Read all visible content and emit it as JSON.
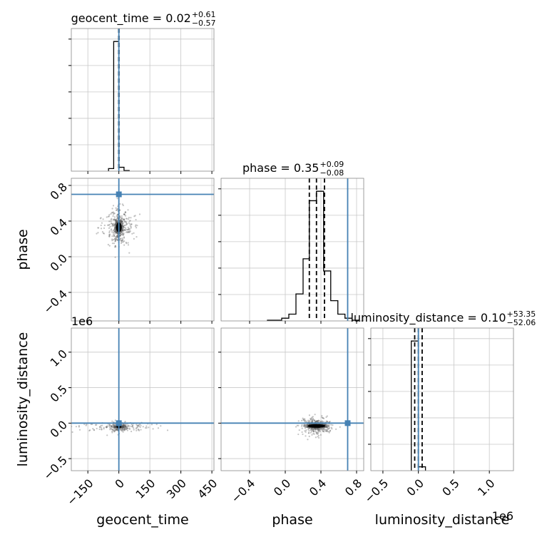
{
  "chart_data": {
    "type": "corner",
    "parameters": [
      "geocent_time",
      "phase",
      "luminosity_distance"
    ],
    "offset_text": "1e6",
    "truth": {
      "geocent_time": 0,
      "phase": 0.7,
      "luminosity_distance": 0
    },
    "truth_color": "#4682b4",
    "titles": [
      {
        "name": "geocent_time",
        "value": "0.02",
        "plus": "+0.61",
        "minus": "−0.57"
      },
      {
        "name": "phase",
        "value": "0.35",
        "plus": "+0.09",
        "minus": "−0.08"
      },
      {
        "name": "luminosity_distance",
        "value": "0.10",
        "plus": "+53.35",
        "minus": "−52.06"
      }
    ],
    "axes": {
      "geocent_time": {
        "range": [
          -230,
          460
        ],
        "ticks": [
          -150,
          0,
          150,
          300,
          450
        ],
        "tick_labels": [
          "−150",
          "0",
          "150",
          "300",
          "450"
        ],
        "label": "geocent_time",
        "quantiles": [
          -0.55,
          0.02,
          0.63
        ]
      },
      "phase": {
        "range": [
          -0.72,
          0.88
        ],
        "ticks": [
          -0.4,
          0.0,
          0.4,
          0.8
        ],
        "tick_labels": [
          "−0.4",
          "0.0",
          "0.4",
          "0.8"
        ],
        "label": "phase",
        "quantiles": [
          0.27,
          0.35,
          0.44
        ]
      },
      "luminosity_distance": {
        "range": [
          -670000,
          1340000
        ],
        "ticks": [
          -500000,
          0,
          500000,
          1000000
        ],
        "tick_labels": [
          "−0.5",
          "0.0",
          "0.5",
          "1.0"
        ],
        "label": "luminosity_distance",
        "quantiles": [
          -52000,
          100,
          53000
        ]
      }
    },
    "histograms": {
      "geocent_time": {
        "bins": [
          [
            -50,
            -25
          ],
          [
            -25,
            0
          ],
          [
            0,
            25
          ],
          [
            25,
            50
          ]
        ],
        "values": [
          0.02,
          1.0,
          0.03,
          0.005
        ]
      },
      "phase": {
        "bins": [
          [
            -0.2,
            -0.12
          ],
          [
            -0.12,
            -0.04
          ],
          [
            -0.04,
            0.04
          ],
          [
            0.04,
            0.12
          ],
          [
            0.12,
            0.2
          ],
          [
            0.2,
            0.27
          ],
          [
            0.27,
            0.35
          ],
          [
            0.35,
            0.43
          ],
          [
            0.43,
            0.51
          ],
          [
            0.51,
            0.59
          ],
          [
            0.59,
            0.67
          ],
          [
            0.67,
            0.75
          ],
          [
            0.75,
            0.83
          ]
        ],
        "values": [
          0.005,
          0.005,
          0.02,
          0.05,
          0.2,
          0.46,
          0.89,
          0.96,
          0.37,
          0.15,
          0.05,
          0.02,
          0.005
        ]
      },
      "luminosity_distance": {
        "bins": [
          [
            -100000,
            0
          ],
          [
            0,
            100000
          ]
        ],
        "values": [
          1.0,
          0.03
        ]
      }
    },
    "scatter": {
      "phase_vs_geocent_time": {
        "center": [
          0,
          0.33
        ],
        "sigma": [
          14,
          0.07
        ],
        "spread": [
          110,
          0.22
        ],
        "core_radius": [
          14,
          0.055
        ]
      },
      "luminosity_distance_vs_geocent_time": {
        "center": [
          0,
          -50000
        ],
        "sigma": [
          12,
          25000
        ],
        "spread": [
          220,
          20000
        ],
        "core_radius": [
          12,
          20000
        ]
      },
      "luminosity_distance_vs_phase": {
        "center": [
          0.35,
          -40000
        ],
        "sigma": [
          0.06,
          30000
        ],
        "spread": [
          0.12,
          150000
        ],
        "core_radius": [
          0.1,
          25000
        ]
      }
    },
    "grid": true
  }
}
